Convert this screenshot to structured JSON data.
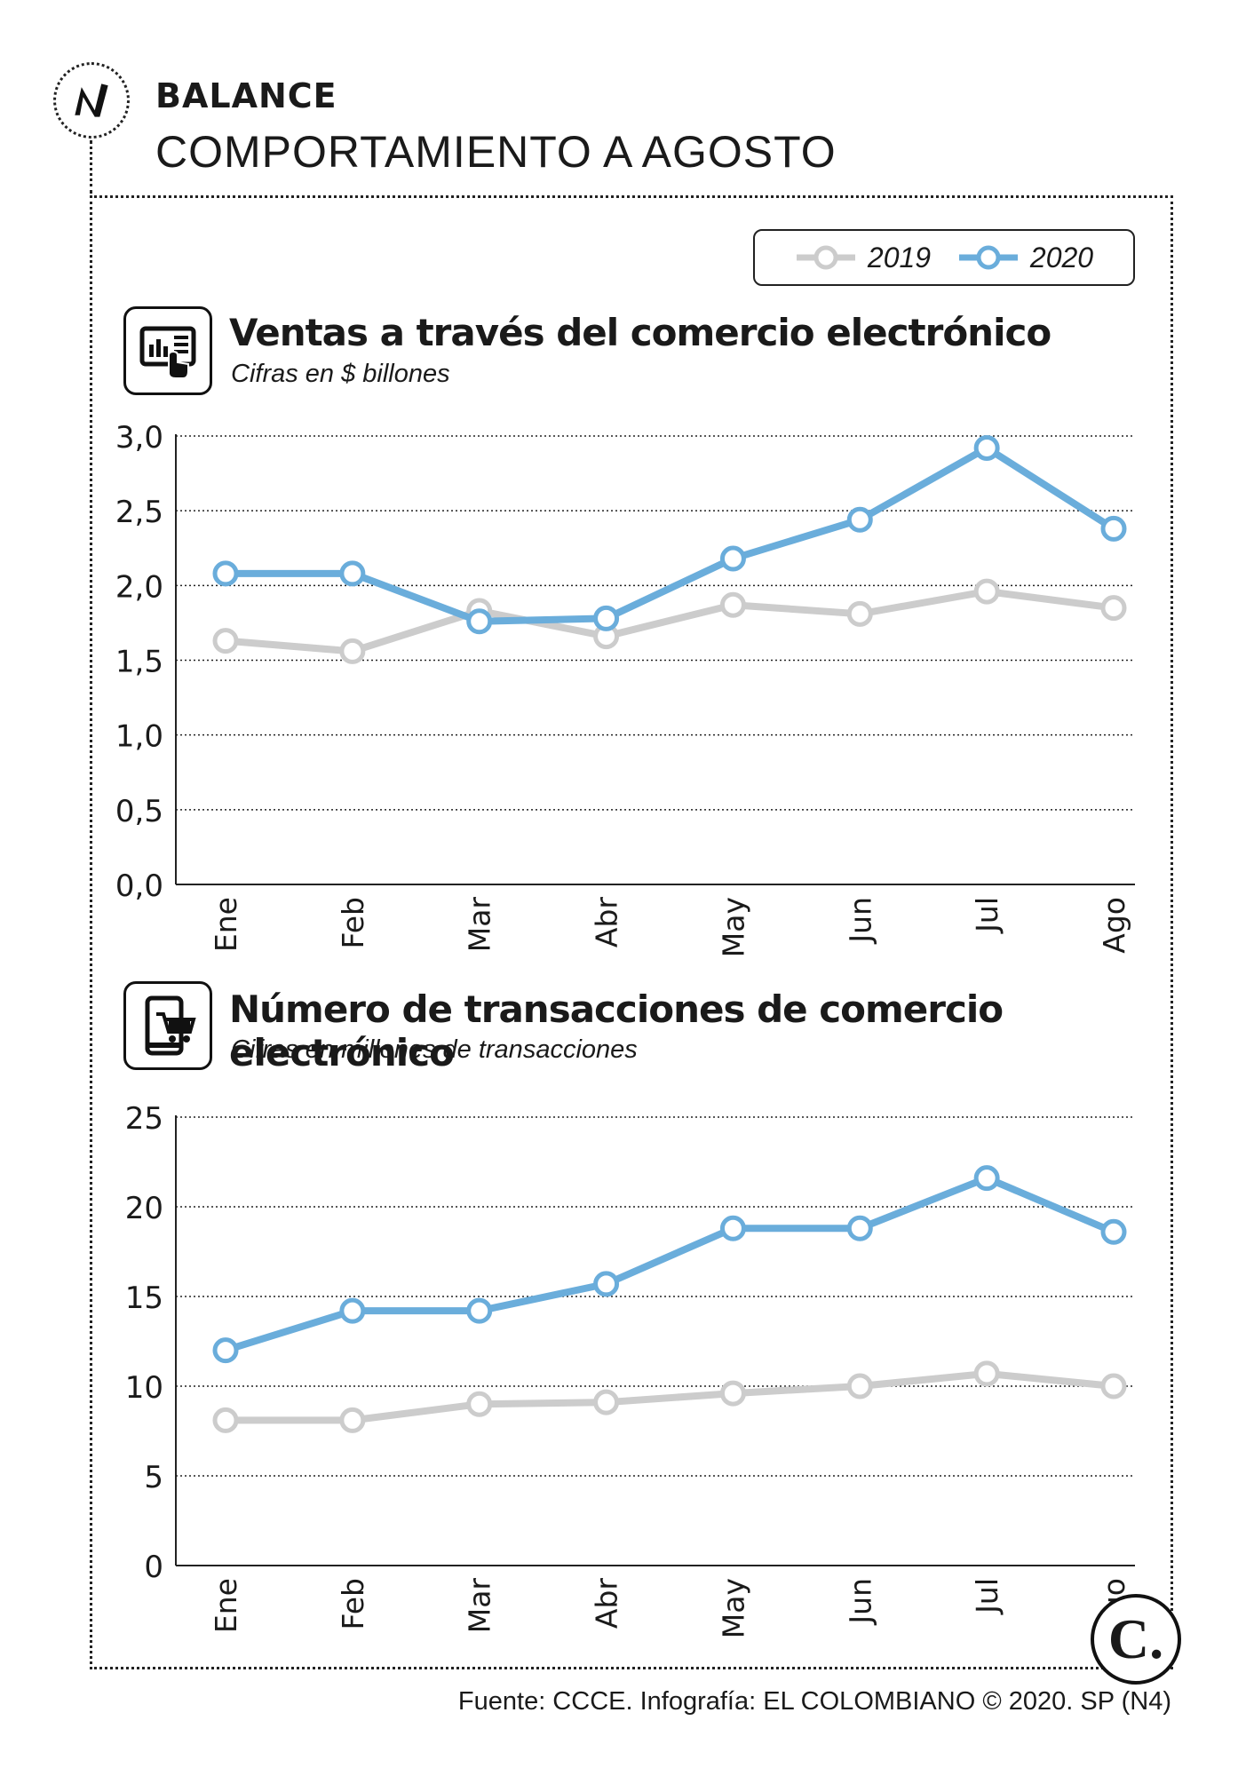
{
  "header": {
    "kicker": "BALANCE",
    "headline": "COMPORTAMIENTO A AGOSTO"
  },
  "legend": {
    "items": [
      {
        "label": "2019",
        "color": "#cccccc"
      },
      {
        "label": "2020",
        "color": "#6aaddb"
      }
    ]
  },
  "panels": [
    {
      "title": "Ventas a través del comercio electrónico",
      "subtitle": "Cifras en $ billones",
      "icon": "tablet-chart-icon"
    },
    {
      "title": "Número de transacciones de comercio electrónico",
      "subtitle": "Cifras en millones de transacciones",
      "icon": "phone-cart-icon"
    }
  ],
  "footer": {
    "source": "Fuente: CCCE. Infografía: EL COLOMBIANO © 2020. SP (N4)",
    "badge": "C."
  },
  "colors": {
    "series_2019": "#cccccc",
    "series_2020": "#6aaddb",
    "text": "#1a1a1a"
  },
  "chart_data": [
    {
      "type": "line",
      "title": "Ventas a través del comercio electrónico",
      "ylabel": "Cifras en $ billones",
      "categories": [
        "Ene",
        "Feb",
        "Mar",
        "Abr",
        "May",
        "Jun",
        "Jul",
        "Ago"
      ],
      "yticks": [
        "0,0",
        "0,5",
        "1,0",
        "1,5",
        "2,0",
        "2,5",
        "3,0"
      ],
      "ylim": [
        0,
        3
      ],
      "grid": true,
      "series": [
        {
          "name": "2019",
          "values": [
            1.63,
            1.56,
            1.83,
            1.66,
            1.87,
            1.81,
            1.96,
            1.85
          ]
        },
        {
          "name": "2020",
          "values": [
            2.08,
            2.08,
            1.76,
            1.78,
            2.18,
            2.44,
            2.92,
            2.38
          ]
        }
      ]
    },
    {
      "type": "line",
      "title": "Número de transacciones de comercio electrónico",
      "ylabel": "Cifras en millones de transacciones",
      "categories": [
        "Ene",
        "Feb",
        "Mar",
        "Abr",
        "May",
        "Jun",
        "Jul",
        "Ago"
      ],
      "yticks": [
        "0",
        "5",
        "10",
        "15",
        "20",
        "25"
      ],
      "ylim": [
        0,
        25
      ],
      "grid": true,
      "series": [
        {
          "name": "2019",
          "values": [
            8.1,
            8.1,
            9.0,
            9.1,
            9.6,
            10.0,
            10.7,
            10.0
          ]
        },
        {
          "name": "2020",
          "values": [
            12.0,
            14.2,
            14.2,
            15.7,
            18.8,
            18.8,
            21.6,
            18.6
          ]
        }
      ]
    }
  ]
}
